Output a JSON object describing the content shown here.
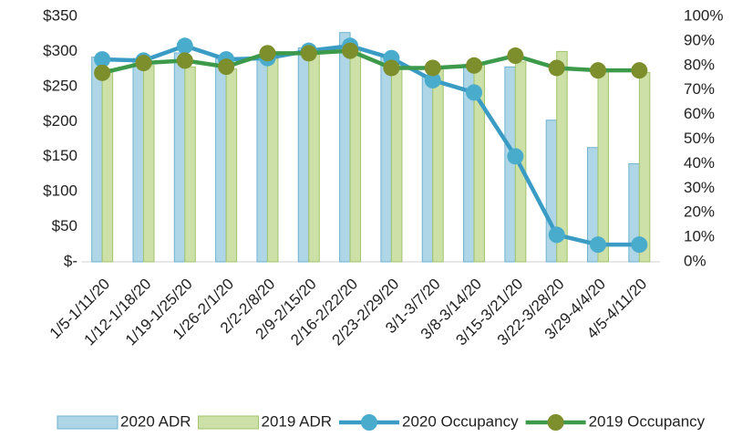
{
  "chart_data": {
    "type": "bar_line",
    "categories": [
      "1/5-1/11/20",
      "1/12-1/18/20",
      "1/19-1/25/20",
      "1/26-2/1/20",
      "2/2-2/8/20",
      "2/9-2/15/20",
      "2/16-2/22/20",
      "2/23-2/29/20",
      "3/1-3/7/20",
      "3/8-3/14/20",
      "3/15-3/21/20",
      "3/22-3/28/20",
      "3/29-4/4/20",
      "4/5-4/11/20"
    ],
    "series": [
      {
        "name": "2020 ADR",
        "type": "bar",
        "color": "#aed6e6",
        "edge_color": "#6fb3cf",
        "values": [
          292,
          290,
          298,
          290,
          295,
          305,
          327,
          293,
          265,
          280,
          278,
          202,
          163,
          140
        ]
      },
      {
        "name": "2019 ADR",
        "type": "bar",
        "color": "#cde0a8",
        "edge_color": "#a3c46c",
        "values": [
          275,
          280,
          278,
          275,
          290,
          300,
          305,
          282,
          277,
          285,
          285,
          300,
          275,
          270
        ]
      },
      {
        "name": "2020 Occupancy",
        "type": "line",
        "axis": "y2",
        "color": "#3a9cc4",
        "marker_color": "#4aaccc",
        "values": [
          82.5,
          82,
          88,
          82.5,
          83,
          86,
          88,
          83,
          74,
          69,
          43,
          11,
          7,
          7
        ]
      },
      {
        "name": "2019 Occupancy",
        "type": "line",
        "axis": "y2",
        "color": "#3d9a4a",
        "marker_color": "#7d8e2c",
        "values": [
          77,
          81,
          82,
          79.5,
          85,
          85,
          86,
          79,
          79,
          80,
          84,
          79,
          78,
          78
        ]
      }
    ],
    "ylim": [
      0,
      350
    ],
    "yticks": [
      {
        "value": 0,
        "label": "$-"
      },
      {
        "value": 50,
        "label": "$50"
      },
      {
        "value": 100,
        "label": "$100"
      },
      {
        "value": 150,
        "label": "$150"
      },
      {
        "value": 200,
        "label": "$200"
      },
      {
        "value": 250,
        "label": "$250"
      },
      {
        "value": 300,
        "label": "$300"
      },
      {
        "value": 350,
        "label": "$350"
      }
    ],
    "y2lim": [
      0,
      100
    ],
    "y2ticks": [
      {
        "value": 0,
        "label": "0%"
      },
      {
        "value": 10,
        "label": "10%"
      },
      {
        "value": 20,
        "label": "20%"
      },
      {
        "value": 30,
        "label": "30%"
      },
      {
        "value": 40,
        "label": "40%"
      },
      {
        "value": 50,
        "label": "50%"
      },
      {
        "value": 60,
        "label": "60%"
      },
      {
        "value": 70,
        "label": "70%"
      },
      {
        "value": 80,
        "label": "80%"
      },
      {
        "value": 90,
        "label": "90%"
      },
      {
        "value": 100,
        "label": "100%"
      }
    ],
    "grid": false,
    "legend": "bottom"
  }
}
